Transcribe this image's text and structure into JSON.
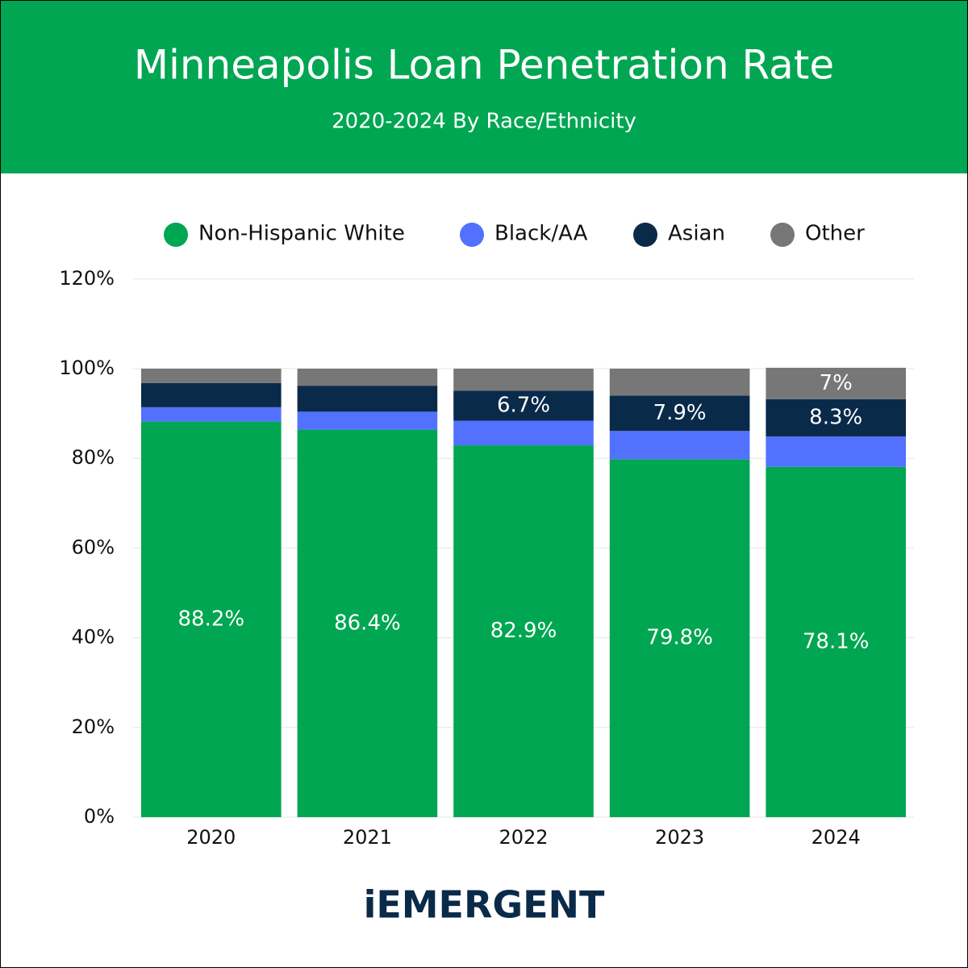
{
  "chart_data": {
    "type": "stacked_bar",
    "title": "Minneapolis Loan Penetration Rate",
    "subtitle": "2020-2024 By Race/Ethnicity",
    "categories": [
      "2020",
      "2021",
      "2022",
      "2023",
      "2024"
    ],
    "series": [
      {
        "name": "Non-Hispanic White",
        "color": "#00a651",
        "values": [
          88.2,
          86.4,
          82.9,
          79.8,
          78.1
        ],
        "value_labels": [
          "88.2%",
          "86.4%",
          "82.9%",
          "79.8%",
          "78.1%"
        ]
      },
      {
        "name": "Black/AA",
        "color": "#5271ff",
        "values": [
          3.2,
          4.0,
          5.5,
          6.3,
          6.8
        ]
      },
      {
        "name": "Asian",
        "color": "#0a2a4a",
        "values": [
          5.4,
          5.8,
          6.7,
          7.9,
          8.3
        ],
        "value_labels": [
          null,
          null,
          "6.7%",
          "7.9%",
          "8.3%"
        ]
      },
      {
        "name": "Other",
        "color": "#777777",
        "values": [
          3.2,
          3.8,
          4.9,
          6.0,
          7
        ],
        "value_labels": [
          null,
          null,
          null,
          null,
          "7%"
        ]
      }
    ],
    "ylim": [
      0,
      120
    ],
    "yticks": [
      {
        "value": 0,
        "label": "0%"
      },
      {
        "value": 20,
        "label": "20%"
      },
      {
        "value": 40,
        "label": "40%"
      },
      {
        "value": 60,
        "label": "60%"
      },
      {
        "value": 80,
        "label": "80%"
      },
      {
        "value": 100,
        "label": "100%"
      },
      {
        "value": 120,
        "label": "120%"
      }
    ],
    "grid": true,
    "legend": "top",
    "logo": "iEMERGENT"
  }
}
